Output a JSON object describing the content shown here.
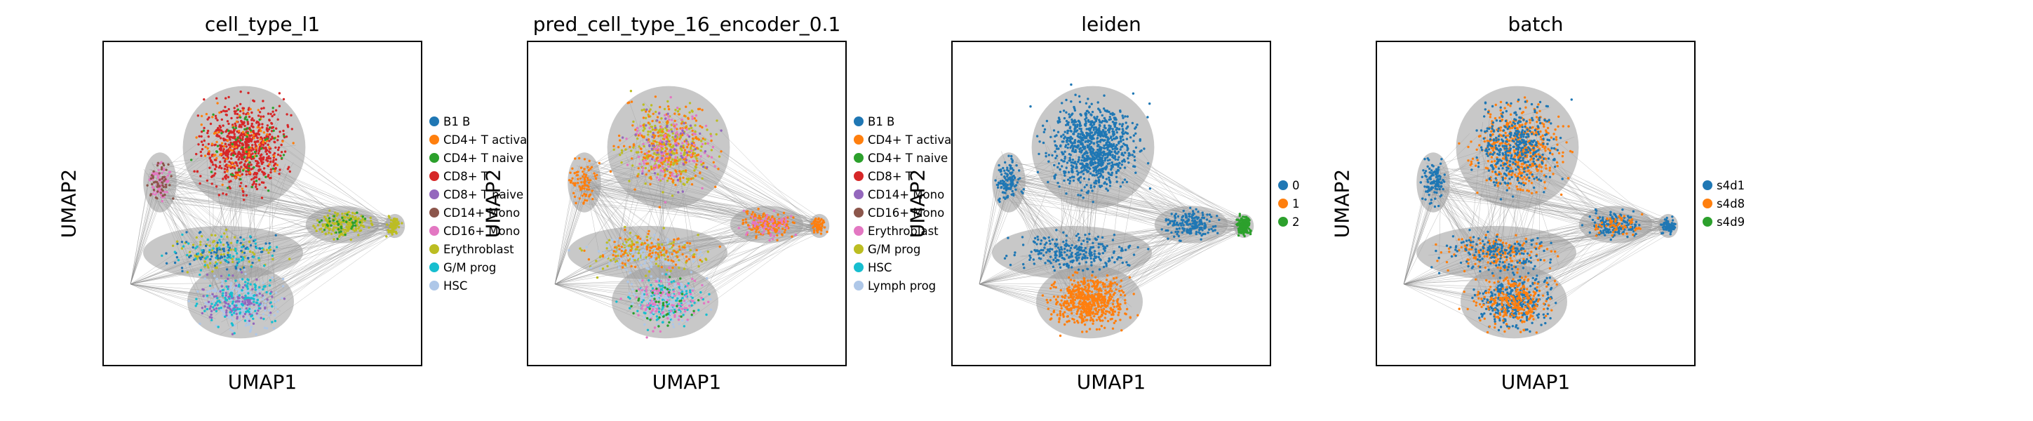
{
  "chart_data": [
    {
      "type": "scatter",
      "title": "cell_type_l1",
      "xlabel": "UMAP1",
      "ylabel": "UMAP2",
      "legend_position": "right",
      "legend": [
        {
          "label": "B1 B",
          "color": "#1f77b4"
        },
        {
          "label": "CD4+ T activa",
          "color": "#ff7f0e"
        },
        {
          "label": "CD4+ T naive",
          "color": "#2ca02c"
        },
        {
          "label": "CD8+ T",
          "color": "#d62728"
        },
        {
          "label": "CD8+ T naive",
          "color": "#9467bd"
        },
        {
          "label": "CD14+ Mono",
          "color": "#8c564b"
        },
        {
          "label": "CD16+ Mono",
          "color": "#e377c2"
        },
        {
          "label": "Erythroblast",
          "color": "#bcbd22"
        },
        {
          "label": "G/M prog",
          "color": "#17becf"
        },
        {
          "label": "HSC",
          "color": "#aec7e8"
        }
      ]
    },
    {
      "type": "scatter",
      "title": "pred_cell_type_16_encoder_0.1",
      "xlabel": "UMAP1",
      "ylabel": "UMAP2",
      "legend_position": "right",
      "legend": [
        {
          "label": "B1 B",
          "color": "#1f77b4"
        },
        {
          "label": "CD4+ T activa",
          "color": "#ff7f0e"
        },
        {
          "label": "CD4+ T naive",
          "color": "#2ca02c"
        },
        {
          "label": "CD8+ T",
          "color": "#d62728"
        },
        {
          "label": "CD14+ Mono",
          "color": "#9467bd"
        },
        {
          "label": "CD16+ Mono",
          "color": "#8c564b"
        },
        {
          "label": "Erythroblast",
          "color": "#e377c2"
        },
        {
          "label": "G/M prog",
          "color": "#bcbd22"
        },
        {
          "label": "HSC",
          "color": "#17becf"
        },
        {
          "label": "Lymph prog",
          "color": "#aec7e8"
        }
      ]
    },
    {
      "type": "scatter",
      "title": "leiden",
      "xlabel": "UMAP1",
      "ylabel": "UMAP2",
      "legend_position": "right",
      "legend": [
        {
          "label": "0",
          "color": "#1f77b4"
        },
        {
          "label": "1",
          "color": "#ff7f0e"
        },
        {
          "label": "2",
          "color": "#2ca02c"
        }
      ]
    },
    {
      "type": "scatter",
      "title": "batch",
      "xlabel": "UMAP1",
      "ylabel": "UMAP2",
      "legend_position": "right",
      "legend": [
        {
          "label": "s4d1",
          "color": "#1f77b4"
        },
        {
          "label": "s4d8",
          "color": "#ff7f0e"
        },
        {
          "label": "s4d9",
          "color": "#2ca02c"
        }
      ]
    }
  ]
}
